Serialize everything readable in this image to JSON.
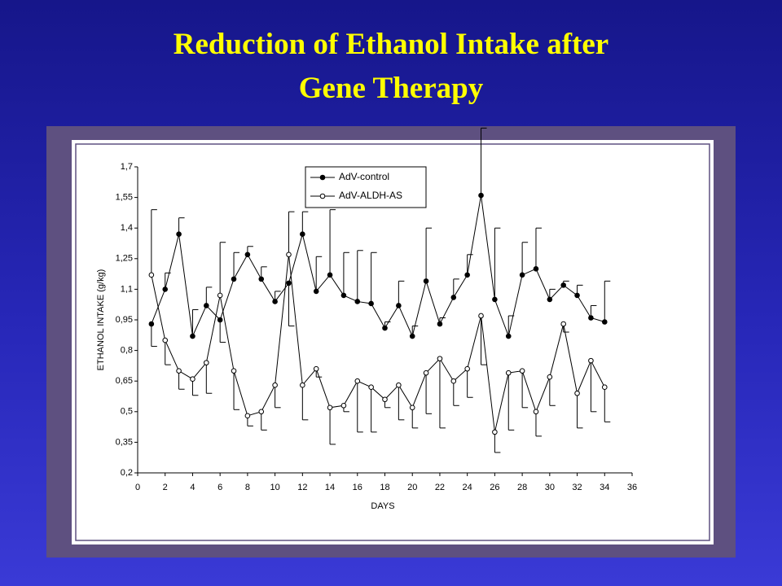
{
  "chart_data": {
    "type": "line",
    "title": "Reduction of Ethanol Intake after Gene Therapy",
    "x_label": "DAYS",
    "y_label": "ETHANOL INTAKE (g/kg)",
    "x": [
      1,
      2,
      3,
      4,
      5,
      6,
      7,
      8,
      9,
      10,
      11,
      12,
      13,
      14,
      15,
      16,
      17,
      18,
      19,
      20,
      21,
      22,
      23,
      24,
      25,
      26,
      27,
      28,
      29,
      30,
      31,
      32,
      33,
      34
    ],
    "series": [
      {
        "name": "AdV-control",
        "color": "#000000",
        "marker": "filled",
        "values": [
          0.93,
          1.1,
          1.37,
          0.87,
          1.02,
          0.95,
          1.15,
          1.27,
          1.15,
          1.04,
          1.13,
          1.37,
          1.09,
          1.17,
          1.07,
          1.04,
          1.03,
          0.91,
          1.02,
          0.87,
          1.14,
          0.93,
          1.06,
          1.17,
          1.56,
          1.05,
          0.87,
          1.17,
          1.2,
          1.05,
          1.12,
          1.07,
          0.96,
          0.94
        ],
        "errors": [
          0.11,
          0.08,
          0.08,
          0.13,
          0.09,
          0.11,
          0.13,
          0.04,
          0.06,
          0.05,
          0.21,
          0.11,
          0.17,
          0.32,
          0.21,
          0.25,
          0.25,
          0.03,
          0.12,
          0.05,
          0.26,
          0.03,
          0.09,
          0.1,
          0.33,
          0.35,
          0.1,
          0.16,
          0.2,
          0.05,
          0.02,
          0.05,
          0.06,
          0.2
        ]
      },
      {
        "name": "AdV-ALDH-AS",
        "color": "#000000",
        "marker": "open",
        "values": [
          1.17,
          0.85,
          0.7,
          0.66,
          0.74,
          1.07,
          0.7,
          0.48,
          0.5,
          0.63,
          1.27,
          0.63,
          0.71,
          0.52,
          0.53,
          0.65,
          0.62,
          0.56,
          0.63,
          0.52,
          0.69,
          0.76,
          0.65,
          0.71,
          0.97,
          0.4,
          0.69,
          0.7,
          0.5,
          0.67,
          0.93,
          0.59,
          0.75,
          0.62
        ],
        "errors": [
          0.32,
          0.12,
          0.09,
          0.08,
          0.15,
          0.26,
          0.19,
          0.05,
          0.09,
          0.11,
          0.21,
          0.17,
          0.04,
          0.18,
          0.03,
          0.25,
          0.22,
          0.04,
          0.17,
          0.1,
          0.2,
          0.34,
          0.12,
          0.14,
          0.24,
          0.1,
          0.28,
          0.18,
          0.12,
          0.14,
          0.04,
          0.17,
          0.25,
          0.17
        ]
      }
    ],
    "xlim": [
      0,
      36
    ],
    "xticks": [
      0,
      2,
      4,
      6,
      8,
      10,
      12,
      14,
      16,
      18,
      20,
      22,
      24,
      26,
      28,
      30,
      32,
      34,
      36
    ],
    "ylim": [
      0.2,
      1.7
    ],
    "yticks": [
      {
        "value": 0.2,
        "label": "0,2"
      },
      {
        "value": 0.35,
        "label": "0,35"
      },
      {
        "value": 0.5,
        "label": "0,5"
      },
      {
        "value": 0.65,
        "label": "0,65"
      },
      {
        "value": 0.8,
        "label": "0,8"
      },
      {
        "value": 0.95,
        "label": "0,95"
      },
      {
        "value": 1.1,
        "label": "1,1"
      },
      {
        "value": 1.25,
        "label": "1,25"
      },
      {
        "value": 1.4,
        "label": "1,4"
      },
      {
        "value": 1.55,
        "label": "1,55"
      },
      {
        "value": 1.7,
        "label": "1,7"
      }
    ],
    "grid": false,
    "legend": "top-center"
  }
}
